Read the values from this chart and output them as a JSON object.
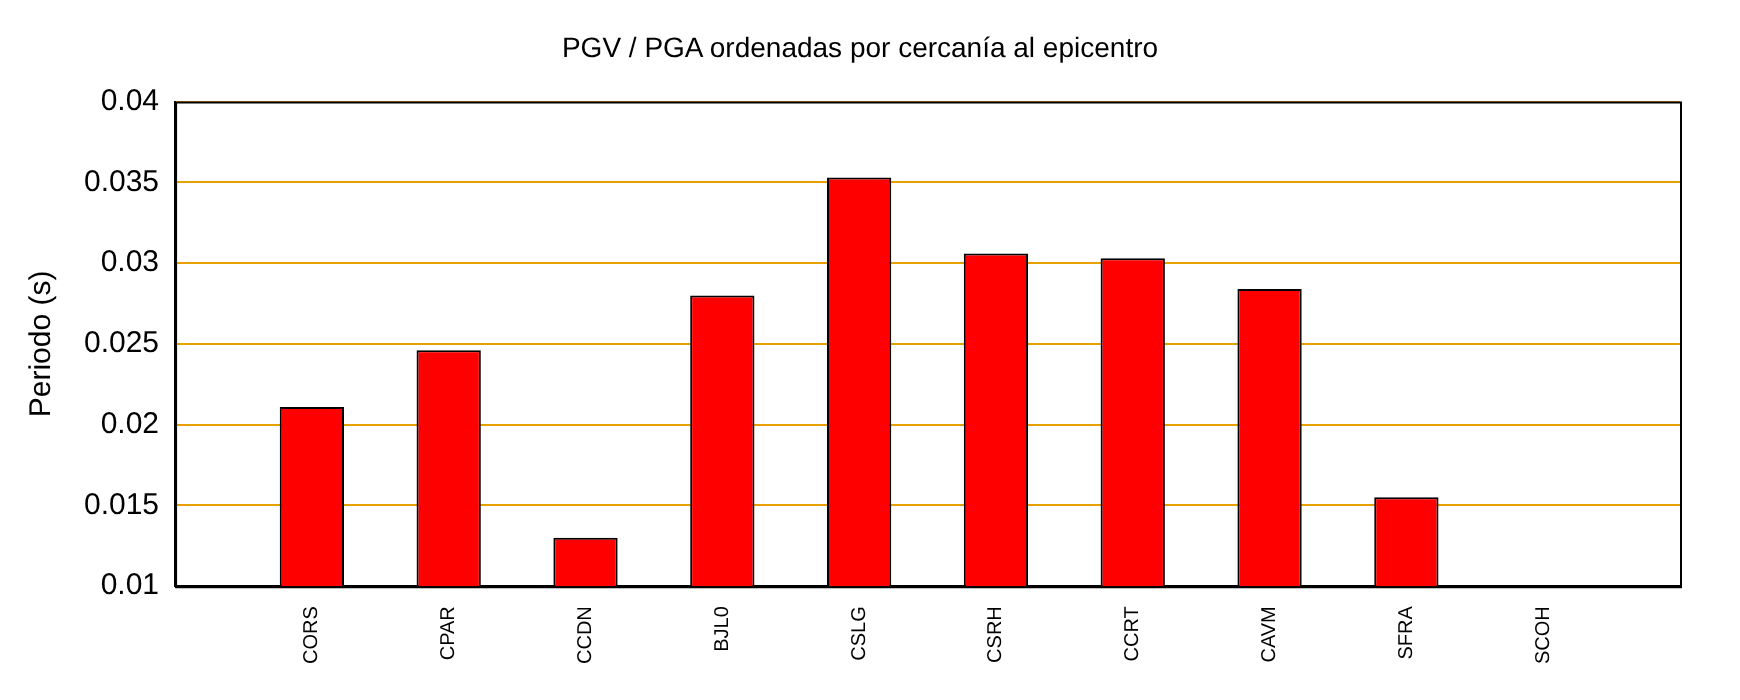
{
  "chart_data": {
    "type": "bar",
    "title": "PGV / PGA ordenadas por cercanía al epicentro",
    "ylabel": "Periodo (s)",
    "categories": [
      "CORS",
      "CPAR",
      "CCDN",
      "BJL0",
      "CSLG",
      "CSRH",
      "CCRT",
      "CAVM",
      "SFRA",
      "SCOH"
    ],
    "values": [
      0.0211,
      0.0246,
      0.013,
      0.028,
      0.0353,
      0.0306,
      0.0303,
      0.0284,
      0.0155,
      null
    ],
    "color": "#ff0000",
    "ylim": [
      0.01,
      0.04
    ],
    "yticks": [
      0.01,
      0.015,
      0.02,
      0.025,
      0.03,
      0.035,
      0.04
    ],
    "grid": "y"
  }
}
